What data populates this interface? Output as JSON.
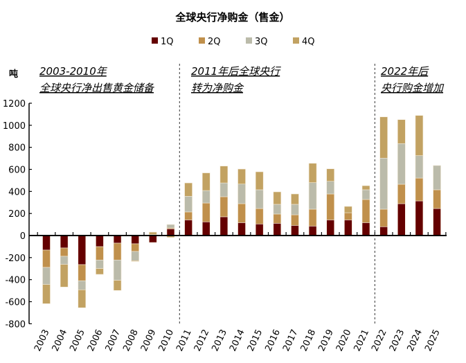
{
  "chart_data": {
    "type": "bar",
    "stacked": true,
    "title": "全球央行净购金（售金）",
    "ylabel": "吨",
    "ylim": [
      -800,
      1200
    ],
    "yticks": [
      -800,
      -600,
      -400,
      -200,
      0,
      200,
      400,
      600,
      800,
      1000,
      1200
    ],
    "categories": [
      "2003",
      "2004",
      "2005",
      "2006",
      "2007",
      "2008",
      "2009",
      "2010",
      "2011",
      "2012",
      "2013",
      "2014",
      "2015",
      "2016",
      "2017",
      "2018",
      "2019",
      "2020",
      "2021",
      "2022",
      "2023",
      "2024",
      "2025"
    ],
    "series": [
      {
        "name": "1Q",
        "color": "#640000",
        "values": [
          -132,
          -113,
          -264,
          -101,
          -69,
          -75,
          -63,
          61,
          142,
          124,
          170,
          117,
          105,
          111,
          92,
          86,
          142,
          142,
          117,
          80,
          289,
          314,
          245
        ]
      },
      {
        "name": "2Q",
        "color": "#c0904c",
        "values": [
          -157,
          -75,
          -146,
          -121,
          -153,
          -69,
          10,
          8,
          72,
          171,
          182,
          172,
          140,
          84,
          96,
          153,
          235,
          65,
          210,
          159,
          176,
          207,
          170
        ]
      },
      {
        "name": "3Q",
        "color": "#bbbbaa",
        "values": [
          -155,
          -74,
          -82,
          -77,
          -184,
          -84,
          0,
          31,
          142,
          113,
          125,
          178,
          170,
          88,
          95,
          241,
          115,
          0,
          88,
          463,
          369,
          204,
          220
        ]
      },
      {
        "name": "4Q",
        "color": "#c2a262",
        "values": [
          -174,
          -205,
          -163,
          -53,
          -92,
          -7,
          21,
          -17,
          121,
          160,
          153,
          136,
          163,
          113,
          94,
          175,
          113,
          57,
          37,
          374,
          217,
          364,
          0
        ]
      }
    ],
    "legend": "top",
    "annotations": [
      {
        "lines": [
          "2003-2010年",
          "全球央行净出售黄金储备"
        ]
      },
      {
        "lines": [
          "2011年后全球央行",
          "转为净购金"
        ]
      },
      {
        "lines": [
          "2022年后",
          "央行购金增加"
        ]
      }
    ]
  }
}
